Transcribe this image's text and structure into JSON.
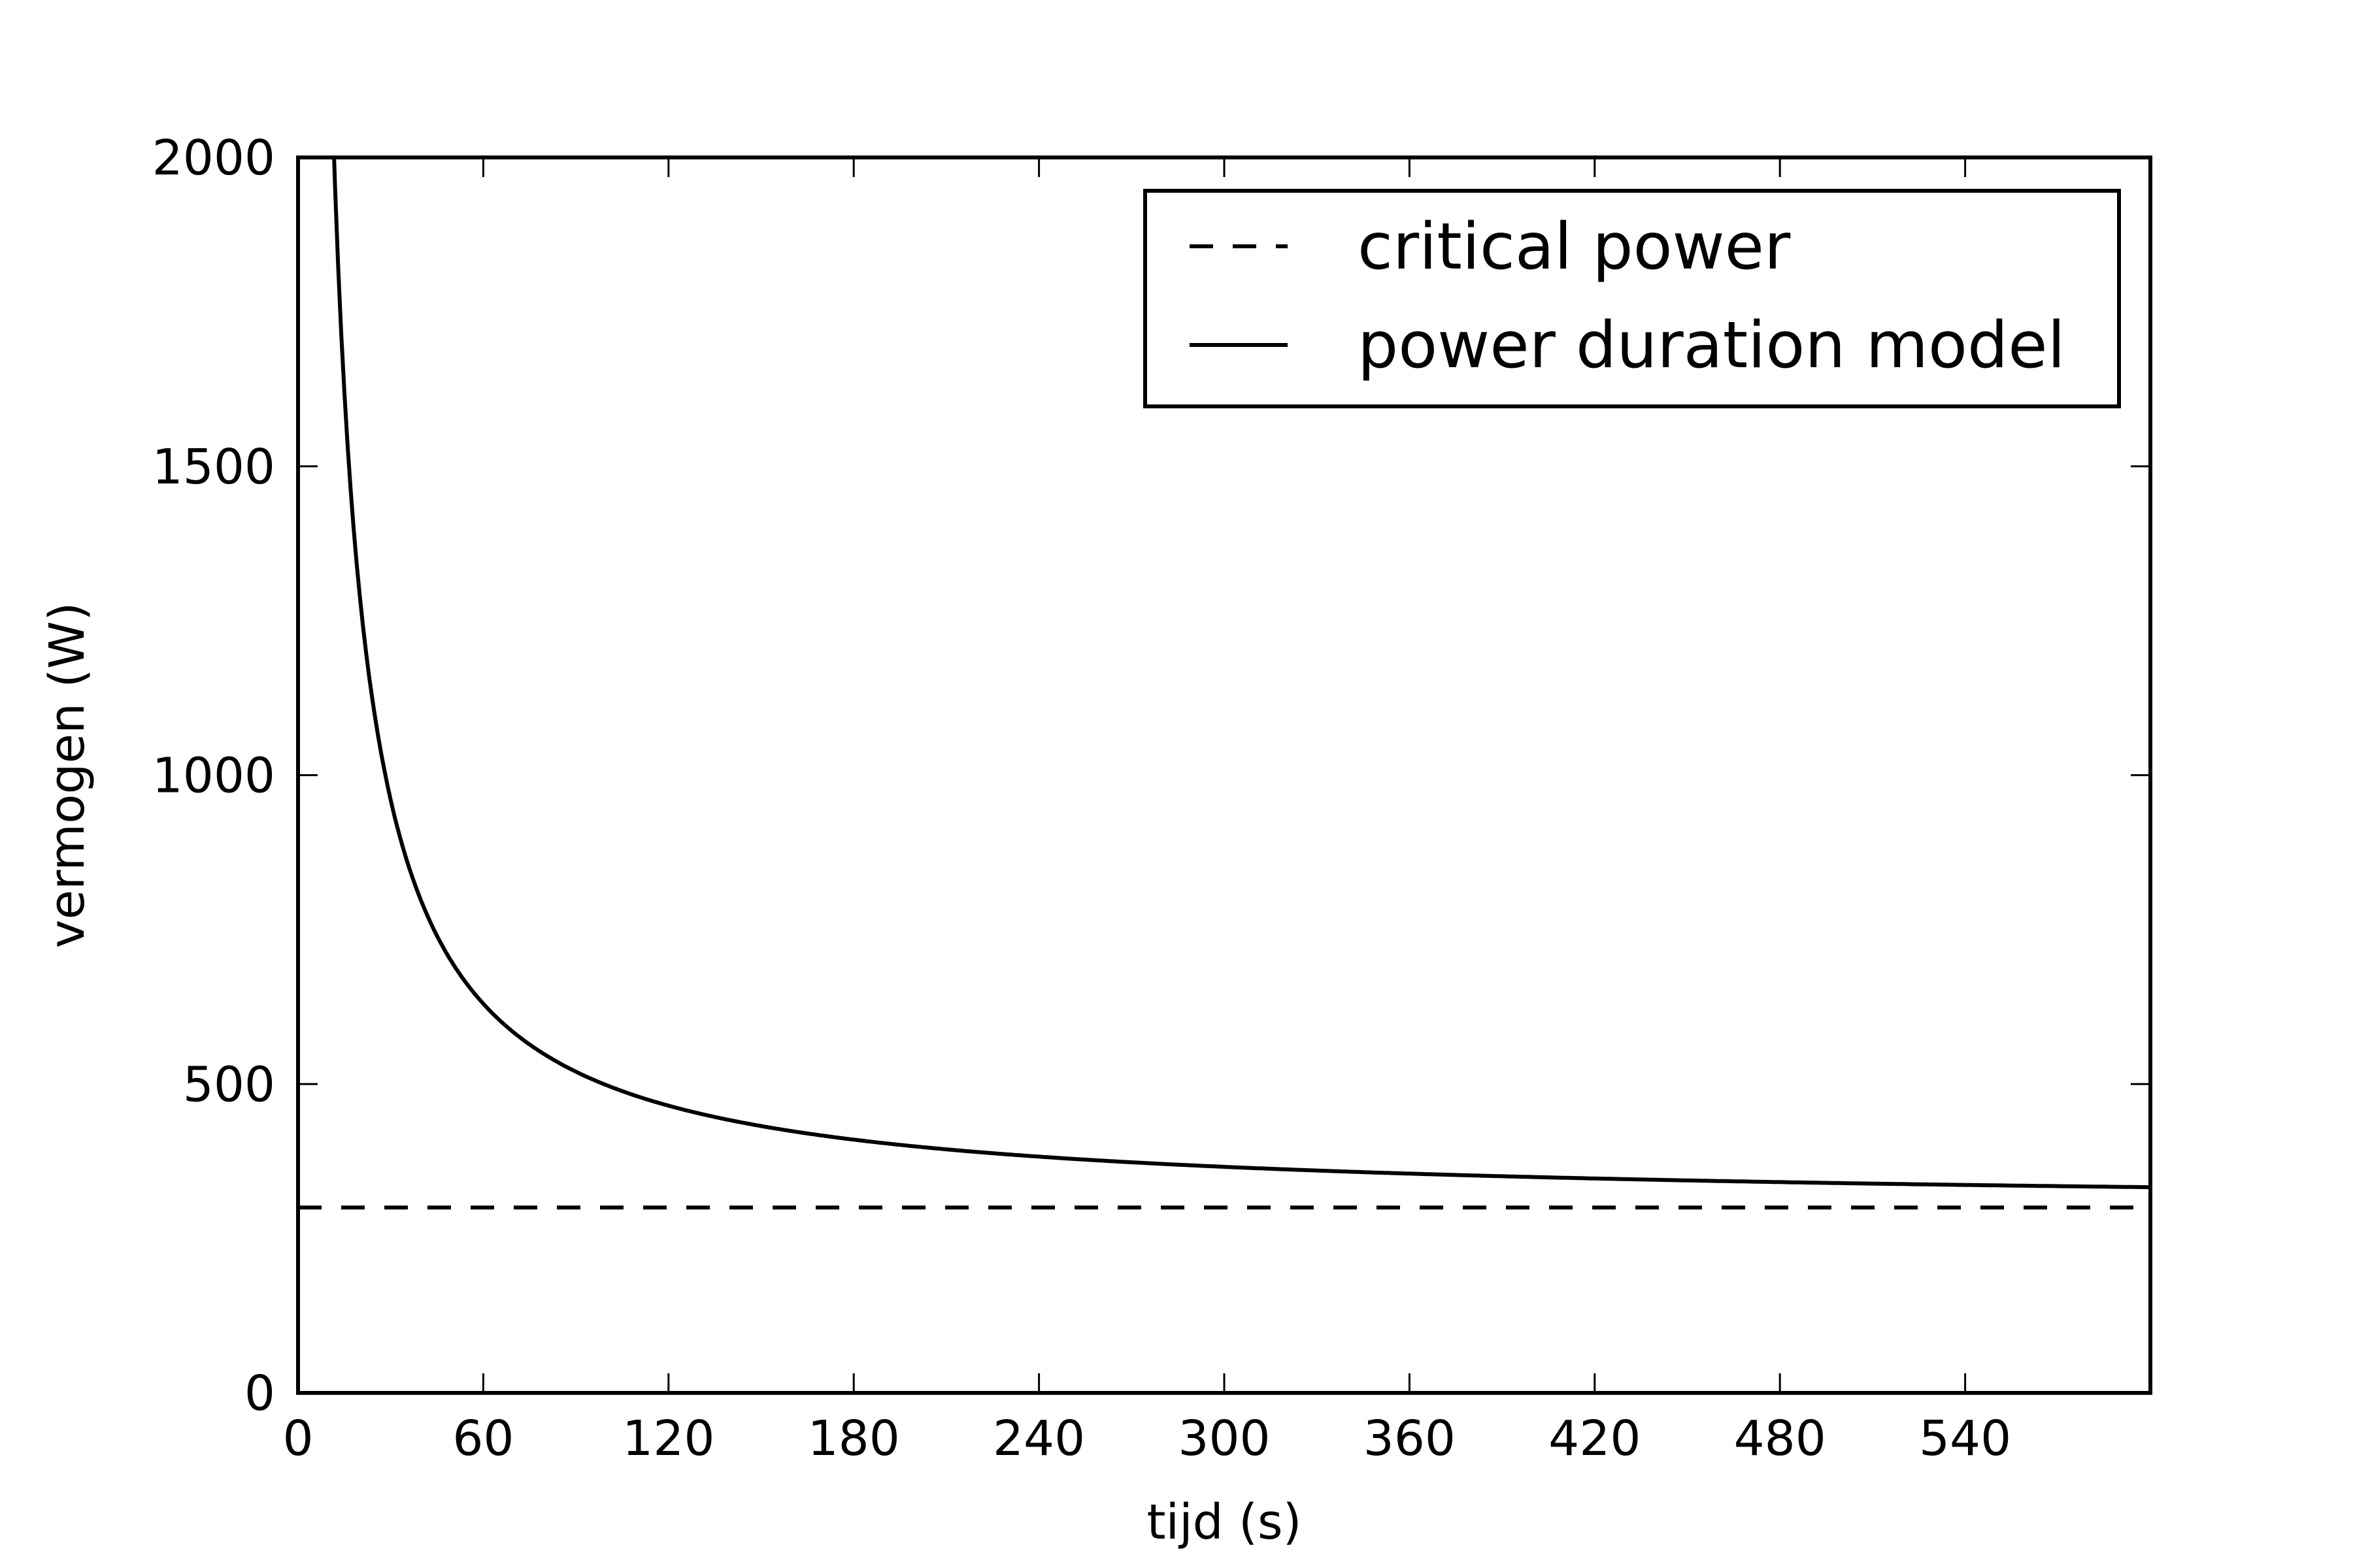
{
  "chart_data": {
    "type": "line",
    "title": "",
    "xlabel": "tijd (s)",
    "ylabel": "vermogen (W)",
    "xlim": [
      0,
      600
    ],
    "ylim": [
      0,
      2000
    ],
    "xticks": [
      0,
      60,
      120,
      180,
      240,
      300,
      360,
      420,
      480,
      540
    ],
    "yticks": [
      0,
      500,
      1000,
      1500,
      2000
    ],
    "grid": false,
    "legend_placement": "top-right",
    "series": [
      {
        "name": "critical power",
        "style": "dashed",
        "color": "#000000",
        "x": [
          0,
          600
        ],
        "y": [
          300,
          300
        ]
      },
      {
        "name": "power duration model",
        "style": "solid",
        "color": "#000000",
        "x": [
          11,
          15,
          20,
          25,
          30,
          40,
          50,
          60,
          80,
          100,
          120,
          150,
          180,
          240,
          300,
          360,
          420,
          480,
          540,
          600
        ],
        "y": [
          2000,
          1633,
          1300,
          1100,
          967,
          800,
          700,
          633,
          550,
          500,
          467,
          433,
          411,
          383,
          367,
          356,
          348,
          342,
          337,
          333
        ]
      }
    ]
  }
}
